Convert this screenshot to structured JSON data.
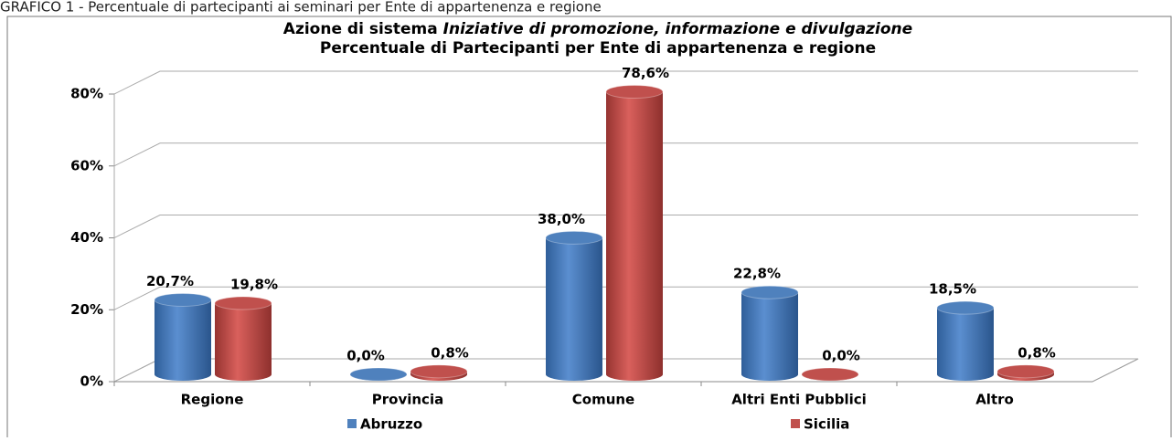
{
  "caption": "GRAFICO 1 - Percentuale di partecipanti  ai seminari per Ente di appartenenza e regione",
  "chart_data": {
    "type": "bar3d",
    "title": {
      "plain": "Azione di sistema ",
      "italic": "Iniziative di promozione, informazione e divulgazione"
    },
    "subtitle": "Percentuale di Partecipanti per Ente di appartenenza e regione",
    "categories": [
      "Regione",
      "Provincia",
      "Comune",
      "Altri Enti Pubblici",
      "Altro"
    ],
    "series": [
      {
        "name": "Abruzzo",
        "color": "#4f81bd",
        "values": [
          20.7,
          0.0,
          38.0,
          22.8,
          18.5
        ],
        "value_labels": [
          "20,7%",
          "0,0%",
          "38,0%",
          "22,8%",
          "18,5%"
        ]
      },
      {
        "name": "Sicilia",
        "color": "#c0504d",
        "values": [
          19.8,
          0.8,
          78.6,
          0.0,
          0.8
        ],
        "value_labels": [
          "19,8%",
          "0,8%",
          "78,6%",
          "0,0%",
          "0,8%"
        ]
      }
    ],
    "ylim": [
      0,
      80
    ],
    "yticks": [
      {
        "value": 0,
        "label": "0%"
      },
      {
        "value": 20,
        "label": "20%"
      },
      {
        "value": 40,
        "label": "40%"
      },
      {
        "value": 60,
        "label": "60%"
      },
      {
        "value": 80,
        "label": "80%"
      }
    ],
    "grid": true,
    "legend": "bottom"
  }
}
